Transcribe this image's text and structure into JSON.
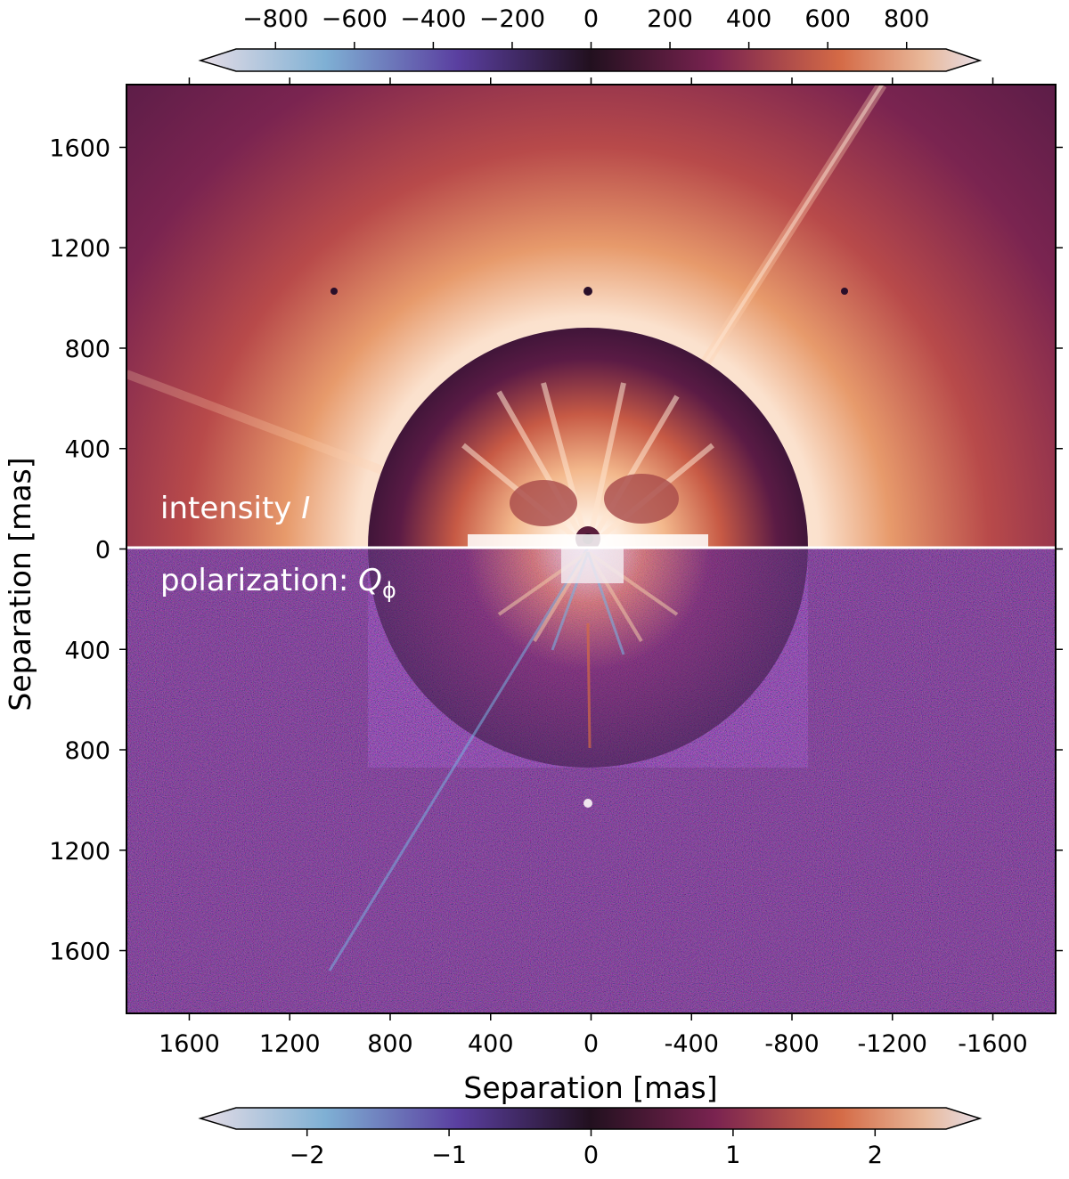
{
  "figure": {
    "colorbar_top": {
      "ticks": [
        "−800",
        "−600",
        "−400",
        "−200",
        "0",
        "200",
        "400",
        "600",
        "800"
      ],
      "range": [
        -900,
        900
      ]
    },
    "colorbar_bottom": {
      "ticks": [
        "−2",
        "−1",
        "0",
        "1",
        "2"
      ],
      "range": [
        -2.5,
        2.5
      ]
    },
    "y_axis": {
      "label": "Separation [mas]",
      "ticks": [
        "1600",
        "1200",
        "800",
        "400",
        "0",
        "400",
        "800",
        "1200",
        "1600"
      ]
    },
    "x_axis": {
      "label": "Separation [mas]",
      "ticks": [
        "1600",
        "1200",
        "800",
        "400",
        "0",
        "-400",
        "-800",
        "-1200",
        "-1600"
      ]
    },
    "panels": {
      "upper_label_prefix": "intensity ",
      "upper_label_var": "I",
      "lower_label_prefix": "polarization: ",
      "lower_label_var": "Q",
      "lower_label_sub": "ϕ"
    },
    "colors": {
      "colormap": [
        "#e6dde6",
        "#6fa3cf",
        "#5a3fa0",
        "#2a1330",
        "#6a1f4a",
        "#c4503d",
        "#e6a679",
        "#e6dde6"
      ],
      "background_top": "#3a1535",
      "background_bottom": "#4a1c45",
      "disk_core": "#fff6ee"
    },
    "coronagraph_radius_mas": 880
  }
}
